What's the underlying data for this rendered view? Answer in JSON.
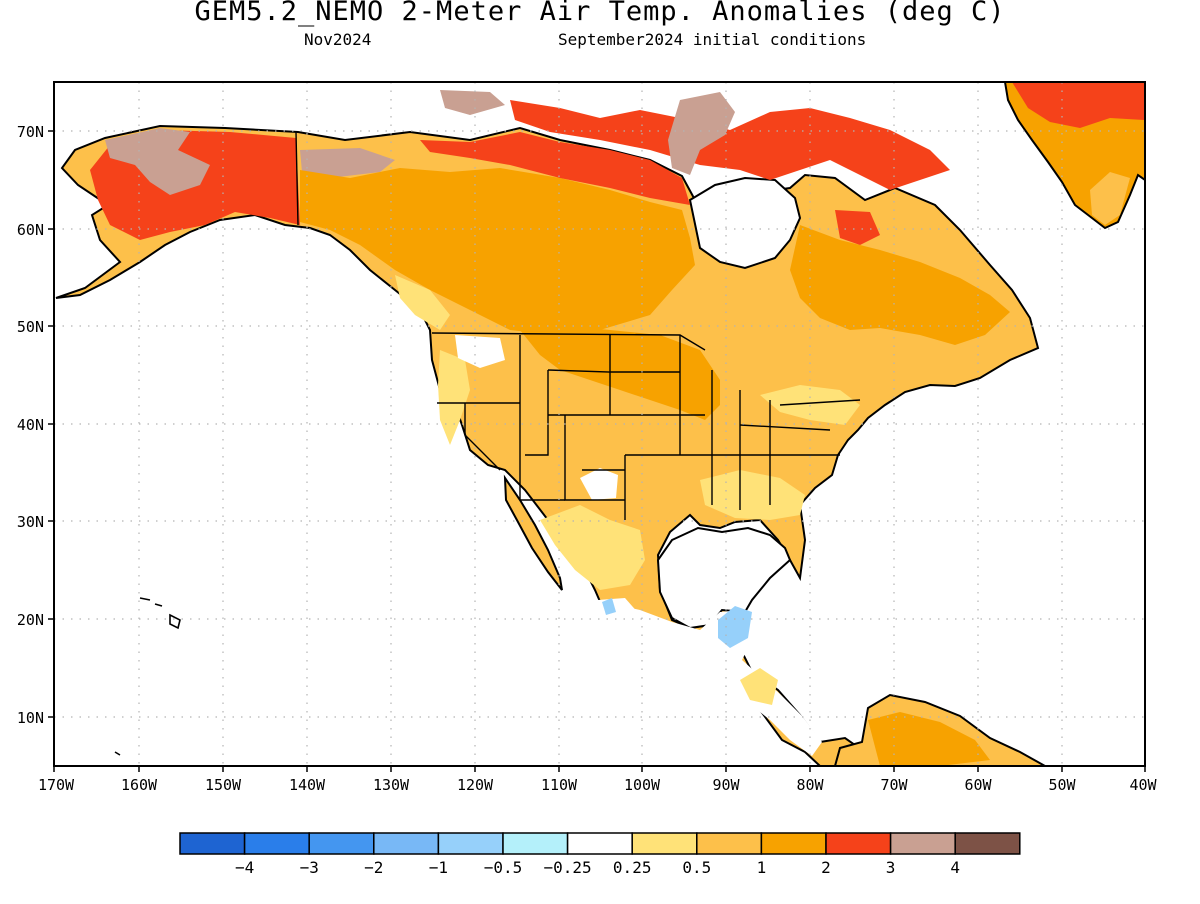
{
  "title": "GEM5.2_NEMO 2-Meter Air Temp. Anomalies (deg C)",
  "subtitle_left": "Nov2024",
  "subtitle_right": "September2024 initial conditions",
  "latitude_labels": [
    "70N",
    "60N",
    "50N",
    "40N",
    "30N",
    "20N",
    "10N"
  ],
  "longitude_labels": [
    "170W",
    "160W",
    "150W",
    "140W",
    "130W",
    "120W",
    "110W",
    "100W",
    "90W",
    "80W",
    "70W",
    "60W",
    "50W",
    "40W"
  ],
  "colorbar": {
    "colors": [
      "#1e64d2",
      "#2a7eea",
      "#4496f0",
      "#78b8f6",
      "#96d0fa",
      "#b4f0fa",
      "#ffffff",
      "#ffe278",
      "#fdc04a",
      "#f7a200",
      "#f5421a",
      "#c9a092",
      "#7d5246"
    ],
    "labels": [
      "−4",
      "−3",
      "−2",
      "−1",
      "−0.5",
      "−0.25",
      "0.25",
      "0.5",
      "1",
      "2",
      "3",
      "4"
    ]
  },
  "anomaly_colors": {
    "slight_warm": "#ffe278",
    "light_warm": "#fdc04a",
    "warm": "#f7a200",
    "hot": "#f5421a",
    "very_hot": "#c9a092",
    "cool": "#96d0fa"
  }
}
